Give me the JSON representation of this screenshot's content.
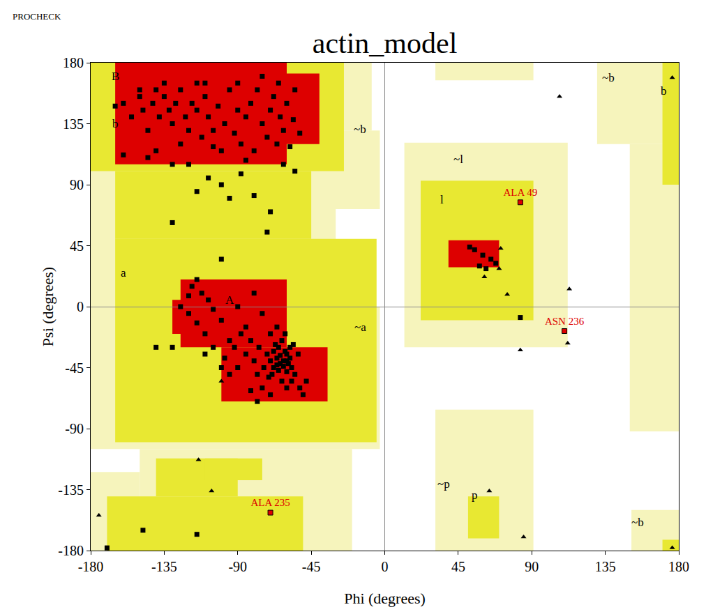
{
  "chart_data": {
    "type": "scatter",
    "title": "actin_model",
    "header": "PROCHECK",
    "x_label": "Phi (degrees)",
    "y_label": "Psi (degrees)",
    "xlim": [
      -180,
      180
    ],
    "ylim": [
      -180,
      180
    ],
    "xticks": [
      -180,
      -135,
      -90,
      -45,
      0,
      45,
      90,
      135,
      180
    ],
    "yticks": [
      -180,
      -135,
      -90,
      -45,
      0,
      45,
      90,
      135,
      180
    ],
    "grid": false,
    "regions": [
      {
        "color": "#f6f4bc",
        "rects": [
          [
            -180,
            -8,
            130,
            180
          ],
          [
            -180,
            -3,
            72,
            130
          ],
          [
            -180,
            -30,
            0,
            72
          ],
          [
            -180,
            -3,
            -105,
            0
          ],
          [
            -150,
            -20,
            -180,
            -105
          ],
          [
            -180,
            -150,
            -180,
            -122
          ],
          [
            12,
            112,
            -30,
            121
          ],
          [
            31,
            91,
            -180,
            -76
          ],
          [
            31,
            91,
            167,
            180
          ],
          [
            130,
            180,
            120,
            180
          ],
          [
            150,
            180,
            -92,
            120
          ],
          [
            151,
            180,
            -180,
            -150
          ]
        ]
      },
      {
        "color": "#e8e832",
        "rects": [
          [
            -180,
            -25,
            100,
            180
          ],
          [
            -165,
            -45,
            50,
            100
          ],
          [
            -165,
            -5,
            -100,
            50
          ],
          [
            -170,
            -50,
            -180,
            -140
          ],
          [
            -140,
            -90,
            -140,
            -112
          ],
          [
            -110,
            -75,
            -128,
            -112
          ],
          [
            22,
            91,
            -10,
            93
          ],
          [
            51,
            70,
            -171,
            -140
          ],
          [
            170,
            180,
            90,
            180
          ],
          [
            170,
            180,
            -180,
            -172
          ]
        ]
      },
      {
        "color": "#dd0000",
        "rects": [
          [
            -165,
            -60,
            105,
            180
          ],
          [
            -60,
            -40,
            120,
            172
          ],
          [
            -125,
            -60,
            -30,
            20
          ],
          [
            -100,
            -35,
            -70,
            -30
          ],
          [
            -130,
            -100,
            -20,
            5
          ],
          [
            39,
            70,
            29,
            49
          ]
        ]
      }
    ],
    "region_labels": [
      {
        "text": "B",
        "x": -165,
        "y": 170
      },
      {
        "text": "b",
        "x": -165,
        "y": 135
      },
      {
        "text": "A",
        "x": -95,
        "y": 5
      },
      {
        "text": "a",
        "x": -160,
        "y": 25
      },
      {
        "text": "~b",
        "x": -15,
        "y": 131
      },
      {
        "text": "~a",
        "x": -15,
        "y": -15
      },
      {
        "text": "~l",
        "x": 45,
        "y": 109
      },
      {
        "text": "l",
        "x": 35,
        "y": 79
      },
      {
        "text": "~p",
        "x": 36,
        "y": -131
      },
      {
        "text": "p",
        "x": 55,
        "y": -139
      },
      {
        "text": "~b",
        "x": 137,
        "y": 169
      },
      {
        "text": "b",
        "x": 171,
        "y": 159
      },
      {
        "text": "~b",
        "x": 155,
        "y": -159
      }
    ],
    "series": [
      {
        "marker": "square",
        "color": "#000000",
        "x": [
          -165,
          -160,
          -155,
          -150,
          -148,
          -145,
          -142,
          -140,
          -138,
          -135,
          -132,
          -130,
          -128,
          -125,
          -122,
          -120,
          -118,
          -115,
          -112,
          -110,
          -108,
          -105,
          -102,
          -100,
          -98,
          -95,
          -92,
          -90,
          -88,
          -85,
          -82,
          -80,
          -78,
          -75,
          -72,
          -70,
          -68,
          -66,
          -64,
          -62,
          -60,
          -58,
          -56,
          -55,
          -52,
          -120,
          -130,
          -108,
          -88,
          -100,
          -115,
          -95,
          -80,
          -70,
          -72,
          -130,
          -150,
          -135,
          -110,
          -90,
          -75,
          -65,
          -115,
          -140,
          -125,
          -105,
          -85,
          -145,
          -160,
          -55,
          -62,
          -100,
          -115,
          -118,
          -112,
          -108,
          -105,
          -120,
          -130,
          -110,
          -100,
          -95,
          -90,
          -85,
          -80,
          -75,
          -70,
          -65,
          -60,
          -62,
          -64,
          -66,
          -68,
          -70,
          -58,
          -57,
          -60,
          -63,
          -67,
          -72,
          -74,
          -61,
          -59,
          -65,
          -69,
          -63,
          -55,
          -53,
          -56,
          -61,
          -66,
          -71,
          -62,
          -64,
          -60,
          -66,
          -58,
          -68,
          -57,
          -52,
          -77,
          -80,
          -85,
          -90,
          -95,
          -88,
          -82,
          -78,
          -75,
          -70,
          -60,
          -50,
          -48,
          -105,
          -98,
          -92,
          -115,
          -125,
          -120,
          -110,
          -100,
          -78,
          -140,
          -82,
          55,
          52,
          60,
          65,
          58,
          62,
          68,
          83,
          -170,
          -148,
          -115
        ],
        "values": [
          148,
          150,
          140,
          155,
          145,
          130,
          150,
          160,
          140,
          155,
          145,
          135,
          150,
          160,
          140,
          130,
          150,
          145,
          125,
          155,
          140,
          130,
          148,
          115,
          135,
          160,
          128,
          145,
          120,
          140,
          150,
          115,
          160,
          135,
          125,
          145,
          155,
          120,
          140,
          130,
          150,
          118,
          138,
          160,
          128,
          105,
          105,
          95,
          98,
          90,
          85,
          80,
          82,
          70,
          55,
          62,
          160,
          165,
          165,
          165,
          170,
          165,
          165,
          115,
          120,
          118,
          108,
          110,
          112,
          100,
          105,
          35,
          20,
          15,
          10,
          5,
          -2,
          -5,
          -30,
          -20,
          -10,
          -25,
          0,
          -15,
          10,
          -5,
          -20,
          -30,
          -35,
          -40,
          -42,
          -38,
          -45,
          -40,
          -38,
          -45,
          -48,
          -25,
          -28,
          -35,
          -45,
          -33,
          -42,
          -47,
          -50,
          -55,
          -50,
          -35,
          -28,
          -20,
          -15,
          -52,
          -44,
          -36,
          -40,
          -43,
          -30,
          -33,
          -55,
          -60,
          -30,
          -40,
          -35,
          -45,
          -50,
          -20,
          -25,
          -50,
          -60,
          -65,
          -60,
          -65,
          -55,
          -30,
          -38,
          -30,
          -12,
          0,
          8,
          -35,
          -45,
          -70,
          -30,
          -62,
          42,
          44,
          38,
          35,
          30,
          28,
          32,
          -8,
          -178,
          -165,
          -168
        ]
      },
      {
        "marker": "triangle-up",
        "color": "#000000",
        "x": [
          107,
          176,
          176,
          -114,
          -106,
          -175,
          -100,
          71,
          70,
          75,
          113,
          112,
          83,
          64,
          85,
          61
        ],
        "values": [
          155,
          169,
          -178,
          -113,
          -136,
          -154,
          -55,
          43,
          28,
          9,
          13,
          -27,
          -32,
          -136,
          -170,
          22
        ]
      }
    ],
    "labeled_points": {
      "color": "#dd0000",
      "x": [
        83,
        110,
        -70
      ],
      "values": [
        77,
        -18,
        -152
      ],
      "labels": [
        "ALA 49",
        "ASN 236",
        "ALA 235"
      ]
    }
  }
}
